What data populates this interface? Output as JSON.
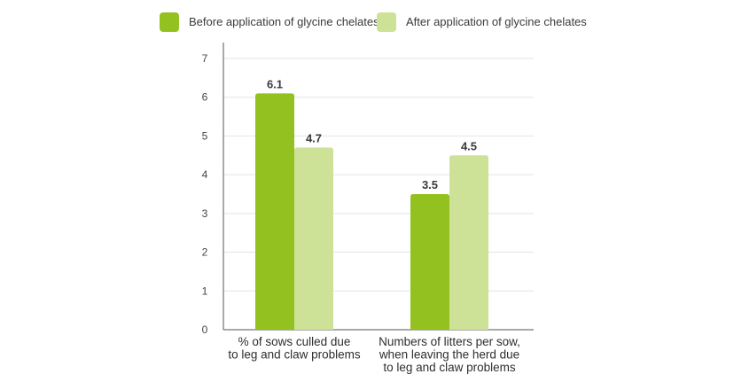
{
  "colors": {
    "before": "#93c11f",
    "after": "#cde296",
    "grid": "#e3e3e3",
    "axis": "#555555"
  },
  "chart_data": {
    "type": "bar",
    "legend_position": "top",
    "grid": true,
    "ylim": [
      0,
      7
    ],
    "yticks": [
      0,
      1,
      2,
      3,
      4,
      5,
      6,
      7
    ],
    "categories": [
      [
        "% of sows culled due",
        "to leg and claw problems"
      ],
      [
        "Numbers of litters per sow,",
        "when leaving the herd due",
        "to leg and claw problems"
      ]
    ],
    "series": [
      {
        "name": "Before application of glycine chelates",
        "values": [
          6.1,
          3.5
        ],
        "color": "#93c11f"
      },
      {
        "name": "After application of glycine chelates",
        "values": [
          4.7,
          4.5
        ],
        "color": "#cde296"
      }
    ]
  }
}
